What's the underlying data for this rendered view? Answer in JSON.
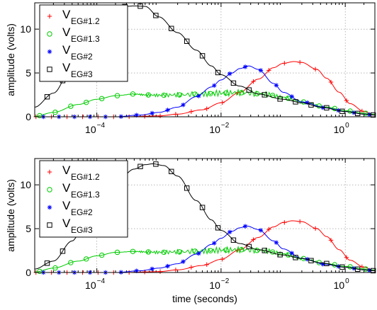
{
  "chart_data": [
    {
      "type": "line",
      "xscale": "log",
      "xlim": [
        1e-05,
        3
      ],
      "ylim": [
        0,
        13
      ],
      "yticks": [
        0,
        5,
        10
      ],
      "xticks": [
        0.0001,
        0.01,
        1
      ],
      "xtick_labels": [
        {
          "base": "10",
          "exp": "−4"
        },
        {
          "base": "10",
          "exp": "−2"
        },
        {
          "base": "10",
          "exp": "0"
        }
      ],
      "xlabel": "",
      "ylabel": "amplitude (volts)",
      "grid": true,
      "legend_position": "top-left",
      "series": [
        {
          "name": "V",
          "sub": "EG#1.2",
          "color": "#ff0000",
          "marker": "plus",
          "points": [
            [
              1e-05,
              0
            ],
            [
              0.0001,
              0
            ],
            [
              0.0003,
              0
            ],
            [
              0.001,
              0.1
            ],
            [
              0.002,
              0.3
            ],
            [
              0.005,
              0.8
            ],
            [
              0.01,
              1.6
            ],
            [
              0.02,
              2.8
            ],
            [
              0.04,
              4.3
            ],
            [
              0.07,
              5.6
            ],
            [
              0.1,
              6.1
            ],
            [
              0.15,
              6.3
            ],
            [
              0.2,
              6.2
            ],
            [
              0.35,
              5.4
            ],
            [
              0.5,
              4.4
            ],
            [
              0.8,
              2.8
            ],
            [
              1.2,
              1.5
            ],
            [
              2,
              0.6
            ],
            [
              3,
              0.2
            ]
          ]
        },
        {
          "name": "V",
          "sub": "EG#1.3",
          "color": "#00cc00",
          "marker": "circle",
          "points": [
            [
              1e-05,
              0.05
            ],
            [
              2e-05,
              0.5
            ],
            [
              5e-05,
              1.4
            ],
            [
              0.0001,
              2.0
            ],
            [
              0.0002,
              2.4
            ],
            [
              0.0004,
              2.6
            ],
            [
              0.0006,
              2.5
            ],
            [
              0.001,
              2.45
            ],
            [
              0.002,
              2.5
            ],
            [
              0.005,
              2.6
            ],
            [
              0.01,
              2.7
            ],
            [
              0.02,
              2.75
            ],
            [
              0.05,
              2.6
            ],
            [
              0.1,
              2.2
            ],
            [
              0.2,
              1.7
            ],
            [
              0.5,
              1.1
            ],
            [
              1,
              0.7
            ],
            [
              2,
              0.4
            ],
            [
              3,
              0.3
            ]
          ]
        },
        {
          "name": "V",
          "sub": "EG#2",
          "color": "#0000ff",
          "marker": "star",
          "points": [
            [
              1e-05,
              0
            ],
            [
              0.0002,
              0
            ],
            [
              0.0005,
              0.2
            ],
            [
              0.001,
              0.5
            ],
            [
              0.002,
              1.1
            ],
            [
              0.004,
              2.3
            ],
            [
              0.007,
              3.4
            ],
            [
              0.01,
              4.2
            ],
            [
              0.015,
              5.0
            ],
            [
              0.02,
              5.5
            ],
            [
              0.028,
              5.8
            ],
            [
              0.04,
              5.4
            ],
            [
              0.07,
              3.8
            ],
            [
              0.1,
              2.8
            ],
            [
              0.2,
              1.7
            ],
            [
              0.5,
              1.0
            ],
            [
              1,
              0.6
            ],
            [
              2,
              0.3
            ],
            [
              3,
              0.2
            ]
          ]
        },
        {
          "name": "V",
          "sub": "EG#3",
          "color": "#000000",
          "marker": "square",
          "points": [
            [
              1e-05,
              1.1
            ],
            [
              2e-05,
              2.7
            ],
            [
              4e-05,
              5.6
            ],
            [
              7e-05,
              8.5
            ],
            [
              0.0001,
              10.0
            ],
            [
              0.00015,
              11.4
            ],
            [
              0.0002,
              12.2
            ],
            [
              0.0003,
              12.6
            ],
            [
              0.0004,
              12.65
            ],
            [
              0.0006,
              12.6
            ],
            [
              0.001,
              11.4
            ],
            [
              0.002,
              9.6
            ],
            [
              0.004,
              7.6
            ],
            [
              0.007,
              5.8
            ],
            [
              0.01,
              4.8
            ],
            [
              0.02,
              3.5
            ],
            [
              0.04,
              2.6
            ],
            [
              0.1,
              2.0
            ],
            [
              0.2,
              1.6
            ],
            [
              0.4,
              1.1
            ],
            [
              1,
              0.6
            ],
            [
              2,
              0.3
            ],
            [
              3,
              0.2
            ]
          ]
        }
      ]
    },
    {
      "type": "line",
      "xscale": "log",
      "xlim": [
        1e-05,
        3
      ],
      "ylim": [
        0,
        13
      ],
      "yticks": [
        0,
        5,
        10
      ],
      "xticks": [
        0.0001,
        0.01,
        1
      ],
      "xtick_labels": [
        {
          "base": "10",
          "exp": "−4"
        },
        {
          "base": "10",
          "exp": "−2"
        },
        {
          "base": "10",
          "exp": "0"
        }
      ],
      "xlabel": "time (seconds)",
      "ylabel": "amplitude (volts)",
      "grid": true,
      "legend_position": "top-left",
      "series": [
        {
          "name": "V",
          "sub": "EG#1.2",
          "color": "#ff0000",
          "marker": "plus",
          "points": [
            [
              1e-05,
              0
            ],
            [
              0.0001,
              0
            ],
            [
              0.0003,
              0
            ],
            [
              0.001,
              0.1
            ],
            [
              0.002,
              0.3
            ],
            [
              0.005,
              0.8
            ],
            [
              0.01,
              1.5
            ],
            [
              0.02,
              2.6
            ],
            [
              0.04,
              4.0
            ],
            [
              0.07,
              5.2
            ],
            [
              0.1,
              5.7
            ],
            [
              0.14,
              5.9
            ],
            [
              0.2,
              5.8
            ],
            [
              0.35,
              5.0
            ],
            [
              0.5,
              4.1
            ],
            [
              0.8,
              2.6
            ],
            [
              1.2,
              1.4
            ],
            [
              2,
              0.6
            ],
            [
              3,
              0.2
            ]
          ]
        },
        {
          "name": "V",
          "sub": "EG#1.3",
          "color": "#00cc00",
          "marker": "circle",
          "points": [
            [
              1e-05,
              0.05
            ],
            [
              2e-05,
              0.5
            ],
            [
              5e-05,
              1.3
            ],
            [
              0.0001,
              1.9
            ],
            [
              0.0002,
              2.3
            ],
            [
              0.0004,
              2.4
            ],
            [
              0.0006,
              2.35
            ],
            [
              0.001,
              2.3
            ],
            [
              0.002,
              2.35
            ],
            [
              0.005,
              2.45
            ],
            [
              0.01,
              2.55
            ],
            [
              0.02,
              2.6
            ],
            [
              0.05,
              2.5
            ],
            [
              0.1,
              2.1
            ],
            [
              0.2,
              1.6
            ],
            [
              0.5,
              1.0
            ],
            [
              1,
              0.7
            ],
            [
              2,
              0.4
            ],
            [
              3,
              0.3
            ]
          ]
        },
        {
          "name": "V",
          "sub": "EG#2",
          "color": "#0000ff",
          "marker": "star",
          "points": [
            [
              1e-05,
              0
            ],
            [
              0.0002,
              0
            ],
            [
              0.0005,
              0.2
            ],
            [
              0.001,
              0.5
            ],
            [
              0.002,
              1.0
            ],
            [
              0.004,
              2.1
            ],
            [
              0.007,
              3.2
            ],
            [
              0.01,
              3.9
            ],
            [
              0.015,
              4.7
            ],
            [
              0.02,
              5.1
            ],
            [
              0.026,
              5.3
            ],
            [
              0.04,
              4.9
            ],
            [
              0.07,
              3.6
            ],
            [
              0.1,
              2.7
            ],
            [
              0.2,
              1.6
            ],
            [
              0.5,
              0.9
            ],
            [
              1,
              0.6
            ],
            [
              2,
              0.3
            ],
            [
              3,
              0.2
            ]
          ]
        },
        {
          "name": "V",
          "sub": "EG#3",
          "color": "#000000",
          "marker": "square",
          "points": [
            [
              1e-05,
              0.4
            ],
            [
              2e-05,
              1.3
            ],
            [
              4e-05,
              3.6
            ],
            [
              7e-05,
              6.3
            ],
            [
              0.0001,
              7.8
            ],
            [
              0.0002,
              10.2
            ],
            [
              0.0004,
              11.8
            ],
            [
              0.0006,
              12.3
            ],
            [
              0.0008,
              12.4
            ],
            [
              0.0012,
              12.2
            ],
            [
              0.002,
              11.0
            ],
            [
              0.004,
              8.2
            ],
            [
              0.007,
              6.0
            ],
            [
              0.01,
              4.8
            ],
            [
              0.02,
              3.3
            ],
            [
              0.04,
              2.6
            ],
            [
              0.1,
              2.0
            ],
            [
              0.2,
              1.6
            ],
            [
              0.4,
              1.1
            ],
            [
              1,
              0.6
            ],
            [
              2,
              0.3
            ],
            [
              3,
              0.2
            ]
          ]
        }
      ]
    }
  ]
}
